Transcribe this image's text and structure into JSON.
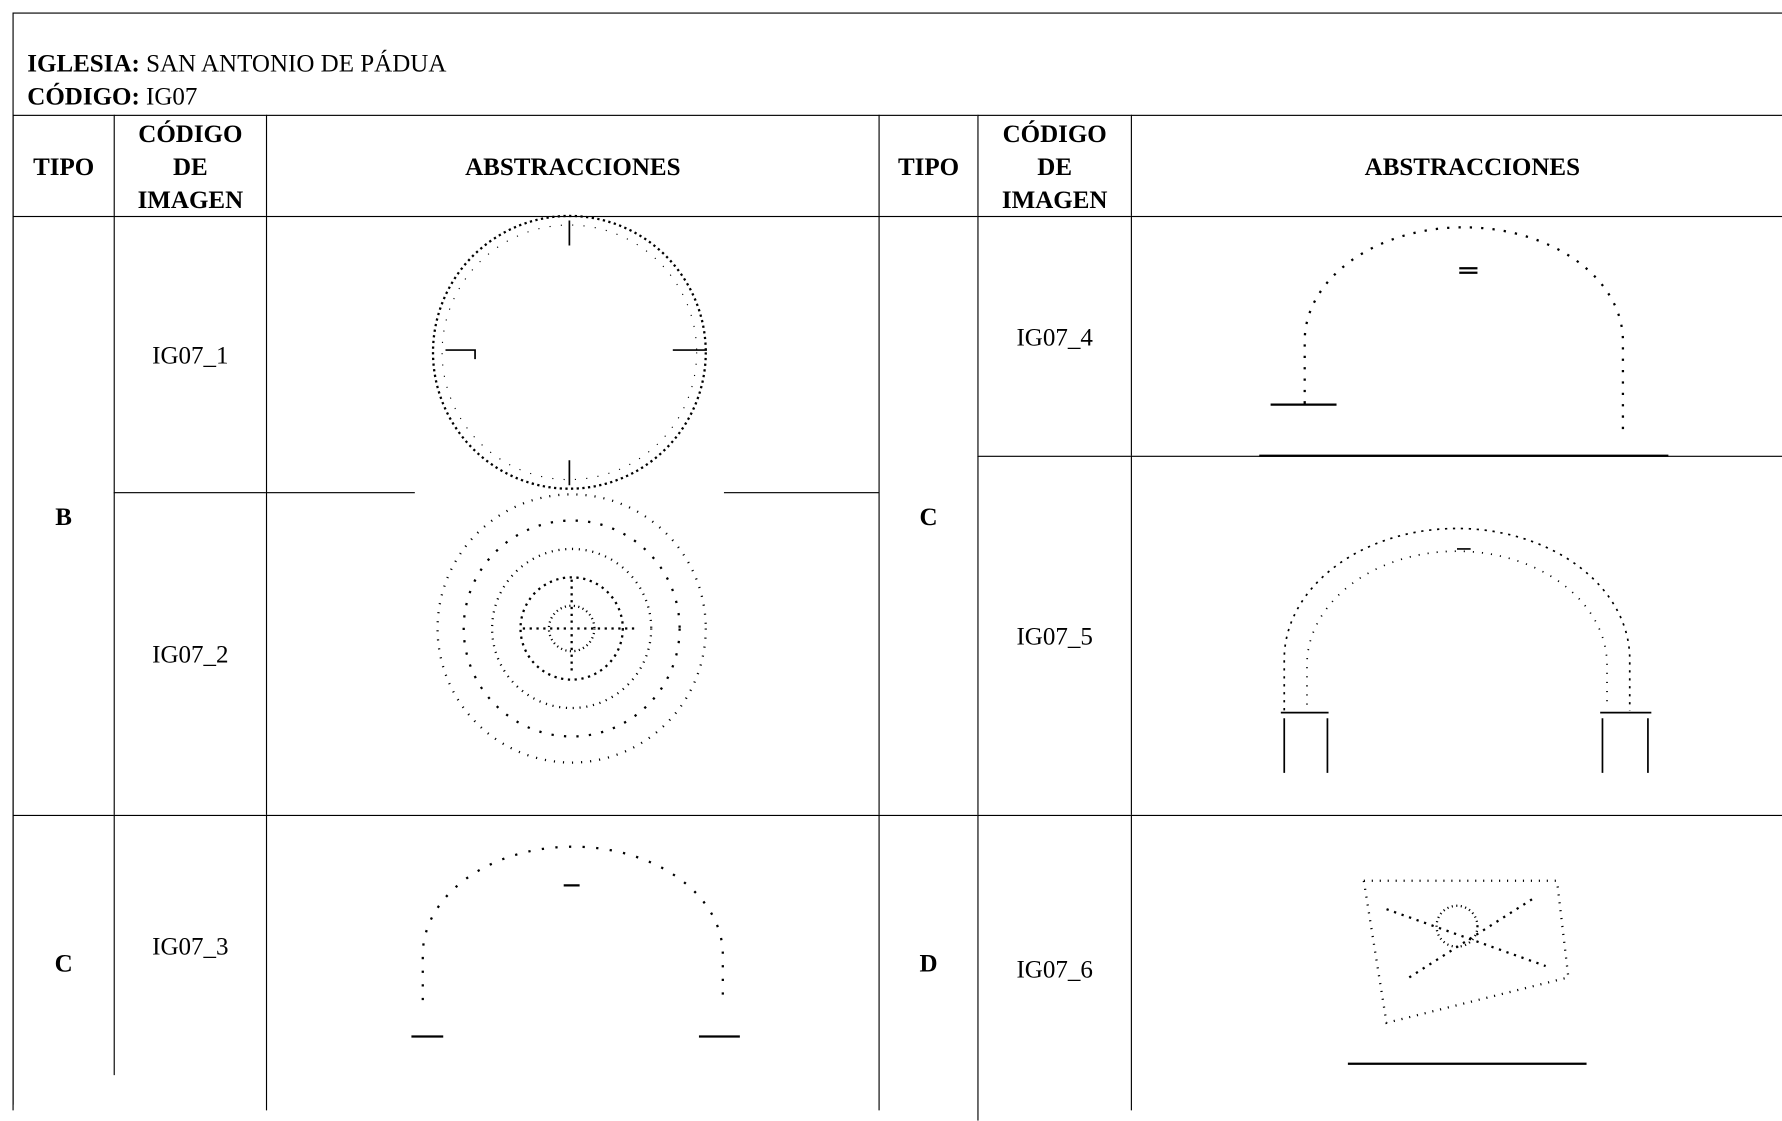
{
  "header": {
    "church_label": "IGLESIA:",
    "church": "SAN ANTONIO DE PÁDUA",
    "code_label": "CÓDIGO:",
    "code": "IG07"
  },
  "table": {
    "columns": [
      "TIPO",
      "CÓDIGO DE IMAGEN",
      "ABSTRACCIONES"
    ],
    "left": [
      {
        "type": "B",
        "codes": [
          "IG07_1",
          "IG07_2"
        ]
      },
      {
        "type": "C",
        "codes": [
          "IG07_3"
        ]
      }
    ],
    "right": [
      {
        "type": "C",
        "codes": [
          "IG07_4",
          "IG07_5"
        ]
      },
      {
        "type": "D",
        "codes": [
          "IG07_6"
        ]
      }
    ]
  }
}
